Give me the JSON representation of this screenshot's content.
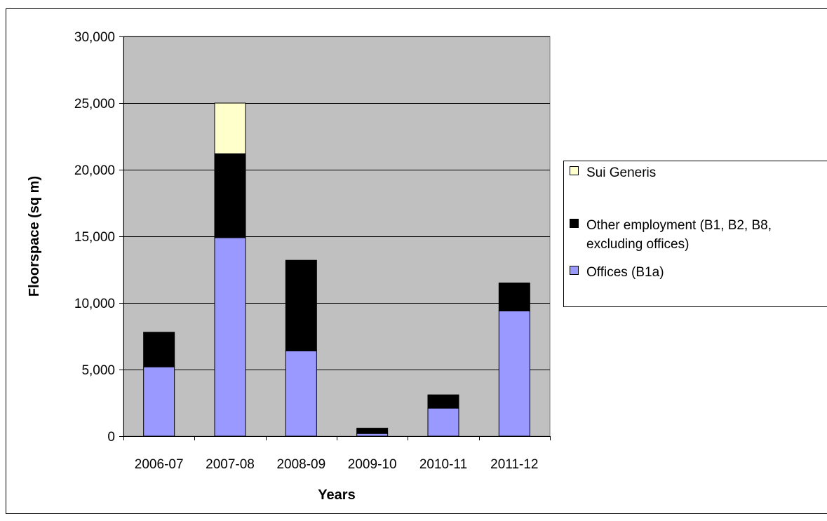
{
  "chart_data": {
    "type": "bar",
    "stacked": true,
    "title": "",
    "xlabel": "Years",
    "ylabel": "Floorspace (sq m)",
    "categories": [
      "2006-07",
      "2007-08",
      "2008-09",
      "2009-10",
      "2010-11",
      "2011-12"
    ],
    "ylim": [
      0,
      30000
    ],
    "yticks": [
      0,
      5000,
      10000,
      15000,
      20000,
      25000,
      30000
    ],
    "ytick_labels": [
      "0",
      "5,000",
      "10,000",
      "15,000",
      "20,000",
      "25,000",
      "30,000"
    ],
    "grid": true,
    "legend_position": "right",
    "series": [
      {
        "name": "Offices (B1a)",
        "color": "#9999ff",
        "values": [
          5200,
          14900,
          6400,
          200,
          2100,
          9400
        ]
      },
      {
        "name": "Other employment (B1, B2, B8, excluding offices)",
        "color": "#000000",
        "values": [
          2600,
          6300,
          6800,
          400,
          1000,
          2100
        ]
      },
      {
        "name": "Sui Generis",
        "color": "#ffffcc",
        "values": [
          0,
          3800,
          0,
          0,
          0,
          0
        ]
      }
    ],
    "legend_order": [
      "Sui Generis",
      "Other employment (B1, B2, B8, excluding offices)",
      "Offices (B1a)"
    ],
    "legend_lines": {
      "Sui Generis": [
        "Sui Generis"
      ],
      "Other employment (B1, B2, B8, excluding offices)": [
        "Other employment (B1, B2, B8,",
        "excluding offices)"
      ],
      "Offices (B1a)": [
        "Offices (B1a)"
      ]
    },
    "plot_background": "#c0c0c0"
  }
}
